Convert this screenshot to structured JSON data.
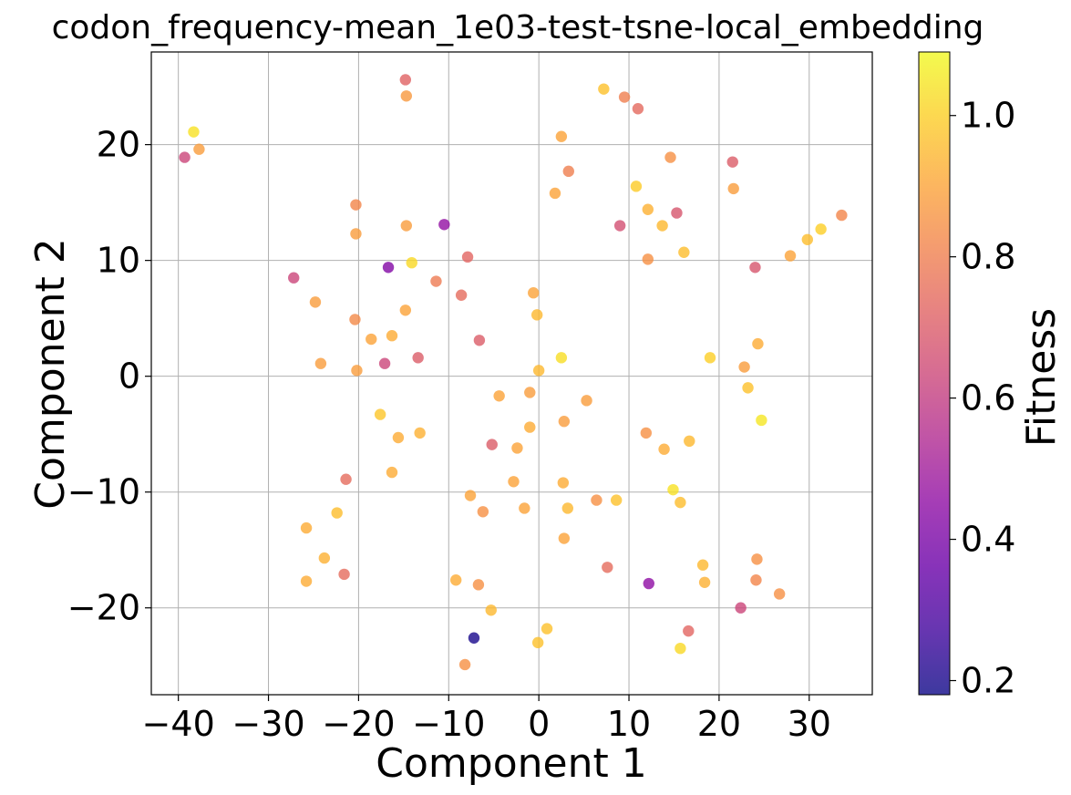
{
  "chart_data": {
    "type": "scatter",
    "title": "codon_frequency-mean_1e03-test-tsne-local_embedding",
    "xlabel": "Component 1",
    "ylabel": "Component 2",
    "xlim": [
      -43,
      37
    ],
    "ylim": [
      -27.5,
      28
    ],
    "xticks": [
      -40,
      -30,
      -20,
      -10,
      0,
      10,
      20,
      30
    ],
    "yticks": [
      -20,
      -10,
      0,
      10,
      20
    ],
    "grid": true,
    "colormap": "plasma",
    "colorbar": {
      "label": "Fitness",
      "range": [
        0.18,
        1.09
      ],
      "ticks": [
        0.2,
        0.4,
        0.6,
        0.8,
        1.0
      ]
    },
    "points": [
      {
        "x": -38.3,
        "y": 21.1,
        "fitness": 1.04
      },
      {
        "x": -37.7,
        "y": 19.6,
        "fitness": 0.88
      },
      {
        "x": -39.3,
        "y": 18.9,
        "fitness": 0.63
      },
      {
        "x": -14.8,
        "y": 25.6,
        "fitness": 0.72
      },
      {
        "x": -14.7,
        "y": 24.2,
        "fitness": 0.87
      },
      {
        "x": 7.2,
        "y": 24.8,
        "fitness": 0.97
      },
      {
        "x": 9.5,
        "y": 24.1,
        "fitness": 0.8
      },
      {
        "x": 11.0,
        "y": 23.1,
        "fitness": 0.74
      },
      {
        "x": 2.5,
        "y": 20.7,
        "fitness": 0.9
      },
      {
        "x": 14.6,
        "y": 18.9,
        "fitness": 0.85
      },
      {
        "x": 21.5,
        "y": 18.5,
        "fitness": 0.7
      },
      {
        "x": 3.3,
        "y": 17.7,
        "fitness": 0.8
      },
      {
        "x": 10.8,
        "y": 16.4,
        "fitness": 0.99
      },
      {
        "x": 21.6,
        "y": 16.2,
        "fitness": 0.88
      },
      {
        "x": 1.8,
        "y": 15.8,
        "fitness": 0.9
      },
      {
        "x": -20.3,
        "y": 14.8,
        "fitness": 0.82
      },
      {
        "x": 12.1,
        "y": 14.4,
        "fitness": 0.93
      },
      {
        "x": 15.3,
        "y": 14.1,
        "fitness": 0.68
      },
      {
        "x": 33.6,
        "y": 13.9,
        "fitness": 0.82
      },
      {
        "x": -10.5,
        "y": 13.1,
        "fitness": 0.46
      },
      {
        "x": -14.7,
        "y": 13.0,
        "fitness": 0.88
      },
      {
        "x": 9.0,
        "y": 13.0,
        "fitness": 0.66
      },
      {
        "x": 13.7,
        "y": 13.0,
        "fitness": 0.95
      },
      {
        "x": 31.3,
        "y": 12.7,
        "fitness": 1.0
      },
      {
        "x": -20.3,
        "y": 12.3,
        "fitness": 0.88
      },
      {
        "x": 29.8,
        "y": 11.8,
        "fitness": 0.96
      },
      {
        "x": 16.1,
        "y": 10.7,
        "fitness": 0.96
      },
      {
        "x": 27.9,
        "y": 10.4,
        "fitness": 0.9
      },
      {
        "x": -7.9,
        "y": 10.3,
        "fitness": 0.73
      },
      {
        "x": 12.1,
        "y": 10.1,
        "fitness": 0.85
      },
      {
        "x": -16.7,
        "y": 9.4,
        "fitness": 0.42
      },
      {
        "x": -14.1,
        "y": 9.8,
        "fitness": 1.02
      },
      {
        "x": 24.0,
        "y": 9.4,
        "fitness": 0.68
      },
      {
        "x": -27.2,
        "y": 8.5,
        "fitness": 0.63
      },
      {
        "x": -11.4,
        "y": 8.2,
        "fitness": 0.79
      },
      {
        "x": -8.6,
        "y": 7.0,
        "fitness": 0.75
      },
      {
        "x": -0.6,
        "y": 7.2,
        "fitness": 0.9
      },
      {
        "x": -24.8,
        "y": 6.4,
        "fitness": 0.88
      },
      {
        "x": -14.8,
        "y": 5.7,
        "fitness": 0.9
      },
      {
        "x": -0.2,
        "y": 5.3,
        "fitness": 0.95
      },
      {
        "x": -20.4,
        "y": 4.9,
        "fitness": 0.83
      },
      {
        "x": -16.3,
        "y": 3.5,
        "fitness": 0.92
      },
      {
        "x": -18.6,
        "y": 3.2,
        "fitness": 0.9
      },
      {
        "x": -6.6,
        "y": 3.1,
        "fitness": 0.7
      },
      {
        "x": 24.3,
        "y": 2.8,
        "fitness": 0.92
      },
      {
        "x": -13.4,
        "y": 1.6,
        "fitness": 0.7
      },
      {
        "x": 2.5,
        "y": 1.6,
        "fitness": 1.03
      },
      {
        "x": 19.0,
        "y": 1.6,
        "fitness": 1.0
      },
      {
        "x": -17.1,
        "y": 1.1,
        "fitness": 0.63
      },
      {
        "x": -24.2,
        "y": 1.1,
        "fitness": 0.88
      },
      {
        "x": 22.8,
        "y": 0.8,
        "fitness": 0.88
      },
      {
        "x": -20.2,
        "y": 0.5,
        "fitness": 0.88
      },
      {
        "x": 0.0,
        "y": 0.5,
        "fitness": 0.95
      },
      {
        "x": 23.2,
        "y": -1.0,
        "fitness": 0.97
      },
      {
        "x": -1.0,
        "y": -1.4,
        "fitness": 0.88
      },
      {
        "x": -4.4,
        "y": -1.7,
        "fitness": 0.9
      },
      {
        "x": 5.3,
        "y": -2.1,
        "fitness": 0.88
      },
      {
        "x": -17.6,
        "y": -3.3,
        "fitness": 0.98
      },
      {
        "x": 24.7,
        "y": -3.8,
        "fitness": 1.05
      },
      {
        "x": 2.8,
        "y": -3.9,
        "fitness": 0.88
      },
      {
        "x": -1.0,
        "y": -4.4,
        "fitness": 0.92
      },
      {
        "x": -13.2,
        "y": -4.9,
        "fitness": 0.93
      },
      {
        "x": 11.9,
        "y": -4.9,
        "fitness": 0.85
      },
      {
        "x": -15.6,
        "y": -5.3,
        "fitness": 0.92
      },
      {
        "x": 16.7,
        "y": -5.6,
        "fitness": 0.95
      },
      {
        "x": -5.2,
        "y": -5.9,
        "fitness": 0.7
      },
      {
        "x": -2.4,
        "y": -6.2,
        "fitness": 0.9
      },
      {
        "x": 13.9,
        "y": -6.3,
        "fitness": 0.92
      },
      {
        "x": -16.3,
        "y": -8.3,
        "fitness": 0.92
      },
      {
        "x": -21.4,
        "y": -8.9,
        "fitness": 0.75
      },
      {
        "x": -2.8,
        "y": -9.1,
        "fitness": 0.9
      },
      {
        "x": 2.7,
        "y": -9.2,
        "fitness": 0.92
      },
      {
        "x": 14.9,
        "y": -9.8,
        "fitness": 1.04
      },
      {
        "x": -7.6,
        "y": -10.3,
        "fitness": 0.9
      },
      {
        "x": 6.4,
        "y": -10.7,
        "fitness": 0.85
      },
      {
        "x": 8.6,
        "y": -10.7,
        "fitness": 0.97
      },
      {
        "x": 15.7,
        "y": -10.9,
        "fitness": 0.96
      },
      {
        "x": -1.6,
        "y": -11.4,
        "fitness": 0.9
      },
      {
        "x": 3.2,
        "y": -11.4,
        "fitness": 0.95
      },
      {
        "x": -6.2,
        "y": -11.7,
        "fitness": 0.85
      },
      {
        "x": -22.4,
        "y": -11.8,
        "fitness": 0.96
      },
      {
        "x": -25.8,
        "y": -13.1,
        "fitness": 0.92
      },
      {
        "x": 2.8,
        "y": -14.0,
        "fitness": 0.9
      },
      {
        "x": -23.8,
        "y": -15.7,
        "fitness": 0.93
      },
      {
        "x": 24.2,
        "y": -15.8,
        "fitness": 0.85
      },
      {
        "x": 18.2,
        "y": -16.3,
        "fitness": 0.95
      },
      {
        "x": 7.6,
        "y": -16.5,
        "fitness": 0.75
      },
      {
        "x": -21.6,
        "y": -17.1,
        "fitness": 0.75
      },
      {
        "x": -9.2,
        "y": -17.6,
        "fitness": 0.92
      },
      {
        "x": 24.1,
        "y": -17.6,
        "fitness": 0.82
      },
      {
        "x": -25.8,
        "y": -17.7,
        "fitness": 0.92
      },
      {
        "x": 18.4,
        "y": -17.8,
        "fitness": 0.93
      },
      {
        "x": 12.2,
        "y": -17.9,
        "fitness": 0.45
      },
      {
        "x": -6.7,
        "y": -18.0,
        "fitness": 0.85
      },
      {
        "x": 26.7,
        "y": -18.8,
        "fitness": 0.85
      },
      {
        "x": 22.4,
        "y": -20.0,
        "fitness": 0.63
      },
      {
        "x": -5.3,
        "y": -20.2,
        "fitness": 0.95
      },
      {
        "x": 16.6,
        "y": -22.0,
        "fitness": 0.73
      },
      {
        "x": 0.9,
        "y": -21.8,
        "fitness": 0.97
      },
      {
        "x": -7.2,
        "y": -22.6,
        "fitness": 0.2
      },
      {
        "x": -0.1,
        "y": -23.0,
        "fitness": 0.97
      },
      {
        "x": 15.7,
        "y": -23.5,
        "fitness": 1.02
      },
      {
        "x": -8.2,
        "y": -24.9,
        "fitness": 0.85
      }
    ]
  }
}
